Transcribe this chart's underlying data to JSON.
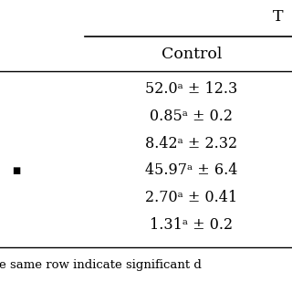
{
  "title_partial": "T",
  "col_header": "Control",
  "rows": [
    "52.0ᵃ ± 12.3",
    "0.85ᵃ ± 0.2",
    "8.42ᵃ ± 2.32",
    "45.97ᵃ ± 6.4",
    "2.70ᵃ ± 0.41",
    "1.31ᵃ ± 0.2"
  ],
  "footer": "e same row indicate significant d",
  "bg_color": "#ffffff",
  "text_color": "#000000",
  "font_size": 11.5,
  "header_font_size": 12.5
}
